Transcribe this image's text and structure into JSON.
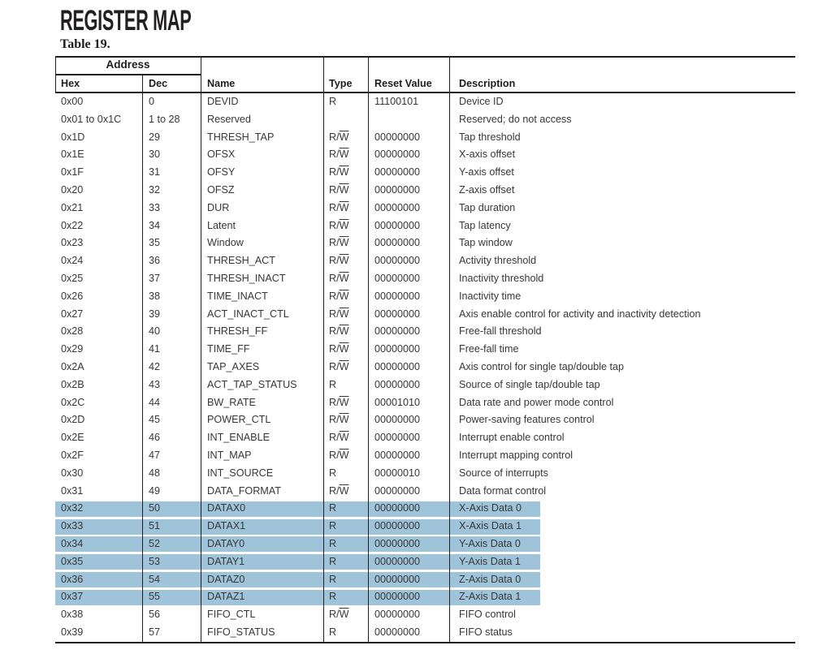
{
  "header": {
    "title": "REGISTER MAP"
  },
  "table": {
    "label": "Table 19.",
    "columns": {
      "address": "Address",
      "hex": "Hex",
      "dec": "Dec",
      "name": "Name",
      "type": "Type",
      "reset": "Reset Value",
      "desc": "Description"
    },
    "colors": {
      "highlight": "#9fc4da"
    },
    "rows": [
      {
        "hex": "0x00",
        "dec": "0",
        "name": "DEVID",
        "type": "R",
        "reset": "11100101",
        "desc": "Device ID",
        "highlighted": false
      },
      {
        "hex": "0x01 to 0x1C",
        "dec": "1 to 28",
        "name": "Reserved",
        "type": "",
        "reset": "",
        "desc": "Reserved; do not access",
        "highlighted": false
      },
      {
        "hex": "0x1D",
        "dec": "29",
        "name": "THRESH_TAP",
        "type": "R/W",
        "reset": "00000000",
        "desc": "Tap threshold",
        "highlighted": false
      },
      {
        "hex": "0x1E",
        "dec": "30",
        "name": "OFSX",
        "type": "R/W",
        "reset": "00000000",
        "desc": "X-axis offset",
        "highlighted": false
      },
      {
        "hex": "0x1F",
        "dec": "31",
        "name": "OFSY",
        "type": "R/W",
        "reset": "00000000",
        "desc": "Y-axis offset",
        "highlighted": false
      },
      {
        "hex": "0x20",
        "dec": "32",
        "name": "OFSZ",
        "type": "R/W",
        "reset": "00000000",
        "desc": "Z-axis offset",
        "highlighted": false
      },
      {
        "hex": "0x21",
        "dec": "33",
        "name": "DUR",
        "type": "R/W",
        "reset": "00000000",
        "desc": "Tap duration",
        "highlighted": false
      },
      {
        "hex": "0x22",
        "dec": "34",
        "name": "Latent",
        "type": "R/W",
        "reset": "00000000",
        "desc": "Tap latency",
        "highlighted": false
      },
      {
        "hex": "0x23",
        "dec": "35",
        "name": "Window",
        "type": "R/W",
        "reset": "00000000",
        "desc": "Tap window",
        "highlighted": false
      },
      {
        "hex": "0x24",
        "dec": "36",
        "name": "THRESH_ACT",
        "type": "R/W",
        "reset": "00000000",
        "desc": "Activity threshold",
        "highlighted": false
      },
      {
        "hex": "0x25",
        "dec": "37",
        "name": "THRESH_INACT",
        "type": "R/W",
        "reset": "00000000",
        "desc": "Inactivity threshold",
        "highlighted": false
      },
      {
        "hex": "0x26",
        "dec": "38",
        "name": "TIME_INACT",
        "type": "R/W",
        "reset": "00000000",
        "desc": "Inactivity time",
        "highlighted": false
      },
      {
        "hex": "0x27",
        "dec": "39",
        "name": "ACT_INACT_CTL",
        "type": "R/W",
        "reset": "00000000",
        "desc": "Axis enable control for activity and inactivity detection",
        "highlighted": false
      },
      {
        "hex": "0x28",
        "dec": "40",
        "name": "THRESH_FF",
        "type": "R/W",
        "reset": "00000000",
        "desc": "Free-fall threshold",
        "highlighted": false
      },
      {
        "hex": "0x29",
        "dec": "41",
        "name": "TIME_FF",
        "type": "R/W",
        "reset": "00000000",
        "desc": "Free-fall time",
        "highlighted": false
      },
      {
        "hex": "0x2A",
        "dec": "42",
        "name": "TAP_AXES",
        "type": "R/W",
        "reset": "00000000",
        "desc": "Axis control for single tap/double tap",
        "highlighted": false
      },
      {
        "hex": "0x2B",
        "dec": "43",
        "name": "ACT_TAP_STATUS",
        "type": "R",
        "reset": "00000000",
        "desc": "Source of single tap/double tap",
        "highlighted": false
      },
      {
        "hex": "0x2C",
        "dec": "44",
        "name": "BW_RATE",
        "type": "R/W",
        "reset": "00001010",
        "desc": "Data rate and power mode control",
        "highlighted": false
      },
      {
        "hex": "0x2D",
        "dec": "45",
        "name": "POWER_CTL",
        "type": "R/W",
        "reset": "00000000",
        "desc": "Power-saving features control",
        "highlighted": false
      },
      {
        "hex": "0x2E",
        "dec": "46",
        "name": "INT_ENABLE",
        "type": "R/W",
        "reset": "00000000",
        "desc": "Interrupt enable control",
        "highlighted": false
      },
      {
        "hex": "0x2F",
        "dec": "47",
        "name": "INT_MAP",
        "type": "R/W",
        "reset": "00000000",
        "desc": "Interrupt mapping control",
        "highlighted": false
      },
      {
        "hex": "0x30",
        "dec": "48",
        "name": "INT_SOURCE",
        "type": "R",
        "reset": "00000010",
        "desc": "Source of interrupts",
        "highlighted": false
      },
      {
        "hex": "0x31",
        "dec": "49",
        "name": "DATA_FORMAT",
        "type": "R/W",
        "reset": "00000000",
        "desc": "Data format control",
        "highlighted": false
      },
      {
        "hex": "0x32",
        "dec": "50",
        "name": "DATAX0",
        "type": "R",
        "reset": "00000000",
        "desc": "X-Axis Data 0",
        "highlighted": true
      },
      {
        "hex": "0x33",
        "dec": "51",
        "name": "DATAX1",
        "type": "R",
        "reset": "00000000",
        "desc": "X-Axis Data 1",
        "highlighted": true
      },
      {
        "hex": "0x34",
        "dec": "52",
        "name": "DATAY0",
        "type": "R",
        "reset": "00000000",
        "desc": "Y-Axis Data 0",
        "highlighted": true
      },
      {
        "hex": "0x35",
        "dec": "53",
        "name": "DATAY1",
        "type": "R",
        "reset": "00000000",
        "desc": "Y-Axis Data 1",
        "highlighted": true
      },
      {
        "hex": "0x36",
        "dec": "54",
        "name": "DATAZ0",
        "type": "R",
        "reset": "00000000",
        "desc": "Z-Axis Data 0",
        "highlighted": true
      },
      {
        "hex": "0x37",
        "dec": "55",
        "name": "DATAZ1",
        "type": "R",
        "reset": "00000000",
        "desc": "Z-Axis Data 1",
        "highlighted": true
      },
      {
        "hex": "0x38",
        "dec": "56",
        "name": "FIFO_CTL",
        "type": "R/W",
        "reset": "00000000",
        "desc": "FIFO control",
        "highlighted": false
      },
      {
        "hex": "0x39",
        "dec": "57",
        "name": "FIFO_STATUS",
        "type": "R",
        "reset": "00000000",
        "desc": "FIFO status",
        "highlighted": false
      }
    ]
  }
}
